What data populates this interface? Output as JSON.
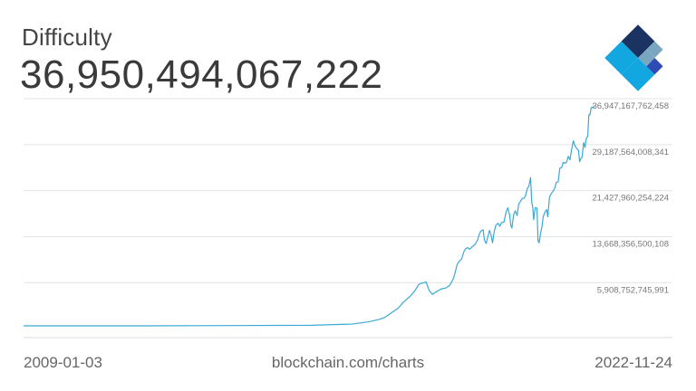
{
  "header": {
    "title": "Difficulty",
    "value": "36,950,494,067,222"
  },
  "footer": {
    "start_date": "2009-01-03",
    "source": "blockchain.com/charts",
    "end_date": "2022-11-24"
  },
  "logo": {
    "icon": "blockchain-diamond-logo",
    "colors": [
      "#1b3360",
      "#7aa7bf",
      "#2e4cb3",
      "#12a7e0",
      "#b7dcf1"
    ]
  },
  "colors": {
    "line": "#3aa8d6",
    "grid": "#e4e4e4",
    "tick_text": "#777777"
  },
  "chart_data": {
    "type": "line",
    "title": "Difficulty",
    "x_range": [
      "2009-01-03",
      "2022-11-24"
    ],
    "y_ticks": [
      {
        "value": 5908752745991,
        "label": "5,908,752,745,991"
      },
      {
        "value": 13668356500108,
        "label": "13,668,356,500,108"
      },
      {
        "value": 21427960254224,
        "label": "21,427,960,254,224"
      },
      {
        "value": 29187564008341,
        "label": "29,187,564,008,341"
      },
      {
        "value": 36947167762458,
        "label": "36,947,167,762,458"
      }
    ],
    "ylim": [
      0,
      36950494067222
    ],
    "grid": true,
    "series": [
      {
        "points": [
          [
            "2009-01-03",
            0
          ],
          [
            "2012-01-01",
            0.0
          ],
          [
            "2016-01-01",
            100000000000.0
          ],
          [
            "2017-01-01",
            300000000000.0
          ],
          [
            "2017-06-01",
            700000000000.0
          ],
          [
            "2017-09-01",
            1100000000000.0
          ],
          [
            "2017-10-15",
            1400000000000.0
          ],
          [
            "2017-12-15",
            2200000000000.0
          ],
          [
            "2018-02-15",
            3000000000000.0
          ],
          [
            "2018-04-01",
            4000000000000.0
          ],
          [
            "2018-06-01",
            5000000000000.0
          ],
          [
            "2018-07-15",
            6000000000000.0
          ],
          [
            "2018-08-15",
            7000000000000.0
          ],
          [
            "2018-09-15",
            7200000000000.0
          ],
          [
            "2018-10-20",
            7400000000000.0
          ],
          [
            "2018-11-15",
            6000000000000.0
          ],
          [
            "2018-12-15",
            5300000000000.0
          ],
          [
            "2019-01-15",
            5700000000000.0
          ],
          [
            "2019-03-01",
            6200000000000.0
          ],
          [
            "2019-04-15",
            6400000000000.0
          ],
          [
            "2019-05-15",
            6800000000000.0
          ],
          [
            "2019-06-01",
            7300000000000.0
          ],
          [
            "2019-06-20",
            8000000000000.0
          ],
          [
            "2019-07-05",
            9000000000000.0
          ],
          [
            "2019-07-20",
            10200000000000.0
          ],
          [
            "2019-08-05",
            10800000000000.0
          ],
          [
            "2019-09-01",
            11300000000000.0
          ],
          [
            "2019-09-20",
            12500000000000.0
          ],
          [
            "2019-10-05",
            13000000000000.0
          ],
          [
            "2019-10-25",
            13200000000000.0
          ],
          [
            "2019-11-10",
            12900000000000.0
          ],
          [
            "2019-12-01",
            13300000000000.0
          ],
          [
            "2020-01-01",
            13800000000000.0
          ],
          [
            "2020-01-20",
            14500000000000.0
          ],
          [
            "2020-02-05",
            15500000000000.0
          ],
          [
            "2020-02-20",
            16000000000000.0
          ],
          [
            "2020-03-10",
            16200000000000.0
          ],
          [
            "2020-03-20",
            14500000000000.0
          ],
          [
            "2020-04-05",
            13900000000000.0
          ],
          [
            "2020-04-20",
            15000000000000.0
          ],
          [
            "2020-05-05",
            16100000000000.0
          ],
          [
            "2020-05-20",
            15200000000000.0
          ],
          [
            "2020-06-01",
            14000000000000.0
          ],
          [
            "2020-06-15",
            15800000000000.0
          ],
          [
            "2020-07-01",
            17000000000000.0
          ],
          [
            "2020-07-20",
            17300000000000.0
          ],
          [
            "2020-08-05",
            16800000000000.0
          ],
          [
            "2020-08-20",
            17400000000000.0
          ],
          [
            "2020-09-10",
            17500000000000.0
          ],
          [
            "2020-10-01",
            19300000000000.0
          ],
          [
            "2020-10-15",
            19900000000000.0
          ],
          [
            "2020-11-01",
            18600000000000.0
          ],
          [
            "2020-11-10",
            17000000000000.0
          ],
          [
            "2020-11-20",
            16500000000000.0
          ],
          [
            "2020-12-05",
            18700000000000.0
          ],
          [
            "2020-12-20",
            19400000000000.0
          ],
          [
            "2021-01-05",
            18600000000000.0
          ],
          [
            "2021-01-20",
            20600000000000.0
          ],
          [
            "2021-02-05",
            21000000000000.0
          ],
          [
            "2021-02-20",
            21500000000000.0
          ],
          [
            "2021-03-05",
            21500000000000.0
          ],
          [
            "2021-03-20",
            21900000000000.0
          ],
          [
            "2021-04-05",
            23100000000000.0
          ],
          [
            "2021-04-20",
            23600000000000.0
          ],
          [
            "2021-05-05",
            25000000000000.0
          ],
          [
            "2021-05-15",
            21000000000000.0
          ],
          [
            "2021-05-25",
            19900000000000.0
          ],
          [
            "2021-06-01",
            17900000000000.0
          ],
          [
            "2021-06-15",
            19900000000000.0
          ],
          [
            "2021-06-30",
            19900000000000.0
          ],
          [
            "2021-07-05",
            17600000000000.0
          ],
          [
            "2021-07-10",
            14400000000000.0
          ],
          [
            "2021-07-20",
            14000000000000.0
          ],
          [
            "2021-08-01",
            15500000000000.0
          ],
          [
            "2021-08-15",
            16800000000000.0
          ],
          [
            "2021-08-25",
            18400000000000.0
          ],
          [
            "2021-09-10",
            19200000000000.0
          ],
          [
            "2021-09-25",
            19600000000000.0
          ],
          [
            "2021-10-05",
            18400000000000.0
          ],
          [
            "2021-10-20",
            21700000000000.0
          ],
          [
            "2021-11-05",
            22300000000000.0
          ],
          [
            "2021-11-20",
            22700000000000.0
          ],
          [
            "2021-12-05",
            23200000000000.0
          ],
          [
            "2021-12-20",
            24200000000000.0
          ],
          [
            "2022-01-05",
            24300000000000.0
          ],
          [
            "2022-01-20",
            26600000000000.0
          ],
          [
            "2022-02-05",
            26700000000000.0
          ],
          [
            "2022-02-20",
            27600000000000.0
          ],
          [
            "2022-03-05",
            27400000000000.0
          ],
          [
            "2022-03-20",
            27600000000000.0
          ],
          [
            "2022-04-05",
            28600000000000.0
          ],
          [
            "2022-04-20",
            28000000000000.0
          ],
          [
            "2022-05-05",
            29800000000000.0
          ],
          [
            "2022-05-20",
            31200000000000.0
          ],
          [
            "2022-06-05",
            30300000000000.0
          ],
          [
            "2022-06-20",
            29900000000000.0
          ],
          [
            "2022-07-05",
            29600000000000.0
          ],
          [
            "2022-07-15",
            27700000000000.0
          ],
          [
            "2022-07-25",
            28200000000000.0
          ],
          [
            "2022-08-05",
            28400000000000.0
          ],
          [
            "2022-08-20",
            30900000000000.0
          ],
          [
            "2022-09-01",
            30100000000000.0
          ],
          [
            "2022-09-10",
            31500000000000.0
          ],
          [
            "2022-09-25",
            32000000000000.0
          ],
          [
            "2022-10-05",
            35600000000000.0
          ],
          [
            "2022-10-15",
            35600000000000.0
          ],
          [
            "2022-10-25",
            36800000000000.0
          ],
          [
            "2022-11-01",
            36800000000000.0
          ],
          [
            "2022-11-12",
            36950000000000.0
          ],
          [
            "2022-11-24",
            36950000000000.0
          ]
        ]
      }
    ]
  }
}
